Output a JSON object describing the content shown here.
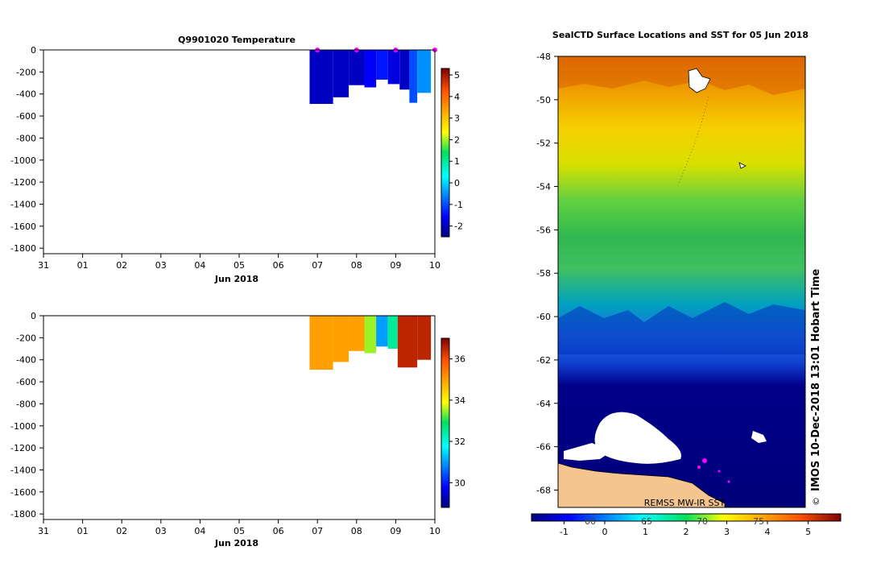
{
  "chart_data": [
    {
      "type": "heatmap",
      "title": "Q9901020  Temperature",
      "xlabel": "Jun 2018",
      "x_ticks": [
        "31",
        "01",
        "02",
        "03",
        "04",
        "05",
        "06",
        "07",
        "08",
        "09",
        "10"
      ],
      "y_ticks": [
        0,
        -200,
        -400,
        -600,
        -800,
        -1000,
        -1200,
        -1400,
        -1600,
        -1800
      ],
      "ylim": [
        -1850,
        0
      ],
      "colorbar": {
        "ticks": [
          5,
          4,
          3,
          2,
          1,
          0,
          -1,
          -2
        ],
        "range": [
          -2.5,
          5.3
        ]
      },
      "profile_markers": [
        7.0,
        8.0,
        9.0,
        10.0
      ],
      "profiles": [
        {
          "x0": 6.8,
          "x1": 7.4,
          "depth": -490,
          "value": -2.0
        },
        {
          "x0": 7.4,
          "x1": 7.8,
          "depth": -430,
          "value": -2.0
        },
        {
          "x0": 7.8,
          "x1": 8.2,
          "depth": -320,
          "value": -2.0
        },
        {
          "x0": 8.2,
          "x1": 8.5,
          "depth": -340,
          "value": -1.6
        },
        {
          "x0": 8.5,
          "x1": 8.8,
          "depth": -270,
          "value": -1.4
        },
        {
          "x0": 8.8,
          "x1": 9.1,
          "depth": -310,
          "value": -1.8
        },
        {
          "x0": 9.1,
          "x1": 9.35,
          "depth": -360,
          "value": -2.0
        },
        {
          "x0": 9.35,
          "x1": 9.55,
          "depth": -480,
          "value": -1.0
        },
        {
          "x0": 9.55,
          "x1": 9.9,
          "depth": -390,
          "value": -0.5
        }
      ]
    },
    {
      "type": "heatmap",
      "title": "",
      "xlabel": "Jun 2018",
      "x_ticks": [
        "31",
        "01",
        "02",
        "03",
        "04",
        "05",
        "06",
        "07",
        "08",
        "09",
        "10"
      ],
      "y_ticks": [
        0,
        -200,
        -400,
        -600,
        -800,
        -1000,
        -1200,
        -1400,
        -1600,
        -1800
      ],
      "ylim": [
        -1850,
        0
      ],
      "colorbar": {
        "ticks": [
          36,
          34,
          32,
          30
        ],
        "range": [
          28.8,
          37.0
        ]
      },
      "profiles": [
        {
          "x0": 6.8,
          "x1": 7.4,
          "depth": -490,
          "value": 35.0
        },
        {
          "x0": 7.4,
          "x1": 7.8,
          "depth": -420,
          "value": 35.0
        },
        {
          "x0": 7.8,
          "x1": 8.2,
          "depth": -320,
          "value": 35.0
        },
        {
          "x0": 8.2,
          "x1": 8.5,
          "depth": -340,
          "value": 33.5
        },
        {
          "x0": 8.5,
          "x1": 8.8,
          "depth": -280,
          "value": 31.0
        },
        {
          "x0": 8.8,
          "x1": 9.05,
          "depth": -300,
          "value": 32.5
        },
        {
          "x0": 9.05,
          "x1": 9.55,
          "depth": -470,
          "value": 36.5
        },
        {
          "x0": 9.55,
          "x1": 9.9,
          "depth": -400,
          "value": 36.5
        }
      ]
    },
    {
      "type": "heatmap",
      "title": "SealCTD Surface Locations and SST for 05 Jun 2018",
      "y_ticks": [
        -48,
        -50,
        -52,
        -54,
        -56,
        -58,
        -60,
        -62,
        -64,
        -66,
        -68
      ],
      "ylim": [
        -68.8,
        -48
      ],
      "colorbar": {
        "ticks": [
          -1,
          0,
          1,
          2,
          3,
          4,
          5
        ],
        "range": [
          -1.8,
          5.8
        ]
      },
      "source_label": "REMSS MW-IR SST",
      "longitude_labels": [
        "60",
        "65",
        "70",
        "75"
      ],
      "credit": "IMOS 10-Dec-2018 13:01 Hobart Time",
      "copyright": "©"
    }
  ],
  "colors": {
    "frame": "#000000",
    "land": "#f5c590",
    "ice": "#ffffff",
    "marker": "#ff00ff"
  }
}
